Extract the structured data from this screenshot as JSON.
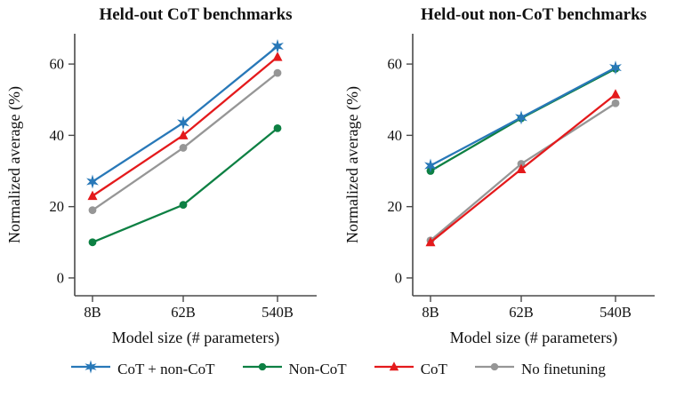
{
  "figure": {
    "background": "#ffffff"
  },
  "style": {
    "axis_color": "#4a4a4a",
    "text_color": "#111111",
    "blue": "#2878b8",
    "green": "#0d8043",
    "red": "#e41a1c",
    "gray": "#969696"
  },
  "legend": {
    "items": [
      {
        "label": "CoT + non-CoT",
        "marker": "star",
        "color": "#2878b8"
      },
      {
        "label": "Non-CoT",
        "marker": "circle",
        "color": "#0d8043"
      },
      {
        "label": "CoT",
        "marker": "triangle",
        "color": "#e41a1c"
      },
      {
        "label": "No finetuning",
        "marker": "circle",
        "color": "#969696"
      }
    ]
  },
  "chart_data": [
    {
      "type": "line",
      "title": "Held-out CoT benchmarks",
      "xlabel": "Model size (# parameters)",
      "ylabel": "Normalized average (%)",
      "categories": [
        "8B",
        "62B",
        "540B"
      ],
      "yticks": [
        0,
        20,
        40,
        60
      ],
      "ylim": [
        -5,
        68.5
      ],
      "grid": false,
      "legend_position": "below-figure",
      "series": [
        {
          "name": "CoT + non-CoT",
          "marker": "star",
          "color": "#2878b8",
          "values": [
            27,
            43.5,
            65
          ]
        },
        {
          "name": "Non-CoT",
          "marker": "circle",
          "color": "#0d8043",
          "values": [
            10,
            20.5,
            42
          ]
        },
        {
          "name": "CoT",
          "marker": "triangle",
          "color": "#e41a1c",
          "values": [
            23,
            40,
            62
          ]
        },
        {
          "name": "No finetuning",
          "marker": "circle",
          "color": "#969696",
          "values": [
            19,
            36.5,
            57.5
          ]
        }
      ]
    },
    {
      "type": "line",
      "title": "Held-out non-CoT benchmarks",
      "xlabel": "Model size (# parameters)",
      "ylabel": "Normalized average (%)",
      "categories": [
        "8B",
        "62B",
        "540B"
      ],
      "yticks": [
        0,
        20,
        40,
        60
      ],
      "ylim": [
        -5,
        68.5
      ],
      "grid": false,
      "legend_position": "below-figure",
      "series": [
        {
          "name": "CoT + non-CoT",
          "marker": "star",
          "color": "#2878b8",
          "values": [
            31.5,
            45,
            59
          ]
        },
        {
          "name": "Non-CoT",
          "marker": "circle",
          "color": "#0d8043",
          "values": [
            30,
            44.8,
            58.7
          ]
        },
        {
          "name": "CoT",
          "marker": "triangle",
          "color": "#e41a1c",
          "values": [
            10,
            30.5,
            51.5
          ]
        },
        {
          "name": "No finetuning",
          "marker": "circle",
          "color": "#969696",
          "values": [
            10.5,
            32,
            49
          ]
        }
      ]
    }
  ]
}
